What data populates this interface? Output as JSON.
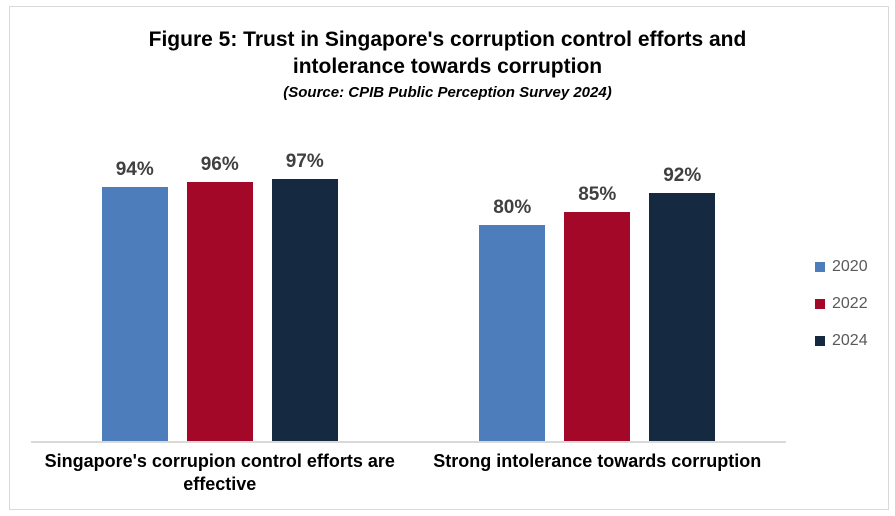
{
  "chart_data": {
    "type": "bar",
    "title": "Figure 5: Trust in Singapore's corruption control efforts and intolerance towards corruption",
    "subtitle": "(Source: CPIB Public Perception Survey 2024)",
    "categories": [
      "Singapore's corrupion control efforts are effective",
      "Strong intolerance towards corruption"
    ],
    "series": [
      {
        "name": "2020",
        "color": "#4D7EBB",
        "values": [
          94,
          80
        ]
      },
      {
        "name": "2022",
        "color": "#A40828",
        "values": [
          96,
          85
        ]
      },
      {
        "name": "2024",
        "color": "#152940",
        "values": [
          97,
          92
        ]
      }
    ],
    "unit": "%",
    "ylim": [
      0,
      100
    ],
    "grid": false,
    "legend_position": "right",
    "data_labels": true,
    "value_label_color": "#404040",
    "axis_line_color": "#D9D9D9",
    "legend_text_color": "#595959"
  }
}
